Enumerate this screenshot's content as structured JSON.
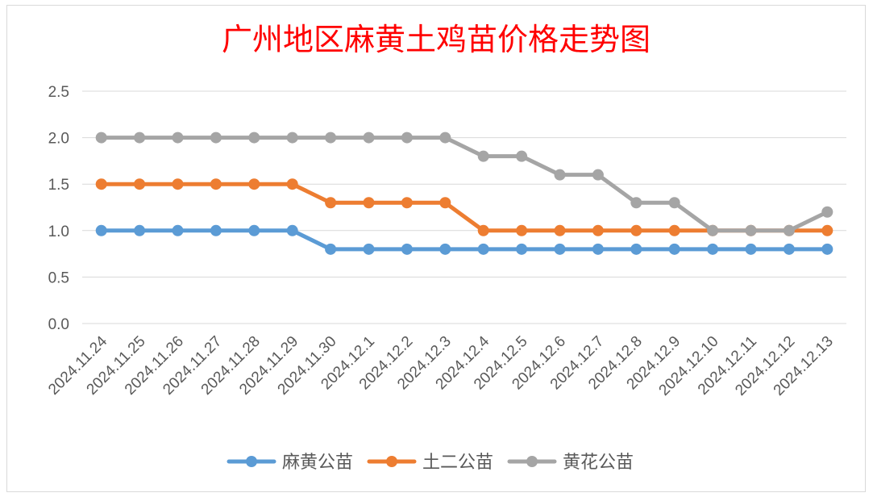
{
  "chart_data": {
    "type": "line",
    "title": "广州地区麻黄土鸡苗价格走势图",
    "xlabel": "",
    "ylabel": "",
    "ylim": [
      0,
      2.5
    ],
    "yticks": [
      "0.0",
      "0.5",
      "1.0",
      "1.5",
      "2.0",
      "2.5"
    ],
    "grid": true,
    "legend_position": "bottom",
    "categories": [
      "2024.11.24",
      "2024.11.25",
      "2024.11.26",
      "2024.11.27",
      "2024.11.28",
      "2024.11.29",
      "2024.11.30",
      "2024.12.1",
      "2024.12.2",
      "2024.12.3",
      "2024.12.4",
      "2024.12.5",
      "2024.12.6",
      "2024.12.7",
      "2024.12.8",
      "2024.12.9",
      "2024.12.10",
      "2024.12.11",
      "2024.12.12",
      "2024.12.13"
    ],
    "series": [
      {
        "name": "麻黄公苗",
        "color": "#5b9bd5",
        "values": [
          1.0,
          1.0,
          1.0,
          1.0,
          1.0,
          1.0,
          0.8,
          0.8,
          0.8,
          0.8,
          0.8,
          0.8,
          0.8,
          0.8,
          0.8,
          0.8,
          0.8,
          0.8,
          0.8,
          0.8
        ]
      },
      {
        "name": "土二公苗",
        "color": "#ed7d31",
        "values": [
          1.5,
          1.5,
          1.5,
          1.5,
          1.5,
          1.5,
          1.3,
          1.3,
          1.3,
          1.3,
          1.0,
          1.0,
          1.0,
          1.0,
          1.0,
          1.0,
          1.0,
          1.0,
          1.0,
          1.0
        ]
      },
      {
        "name": "黄花公苗",
        "color": "#a5a5a5",
        "values": [
          2.0,
          2.0,
          2.0,
          2.0,
          2.0,
          2.0,
          2.0,
          2.0,
          2.0,
          2.0,
          1.8,
          1.8,
          1.6,
          1.6,
          1.3,
          1.3,
          1.0,
          1.0,
          1.0,
          1.2
        ]
      }
    ]
  }
}
